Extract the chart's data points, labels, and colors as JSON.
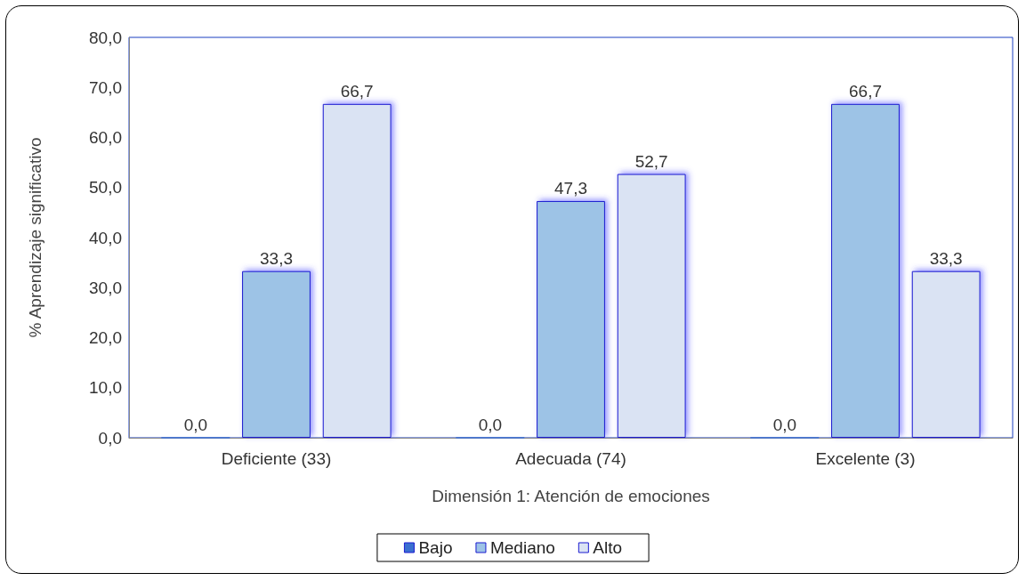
{
  "chart_data": {
    "type": "bar",
    "xlabel": "Dimensión 1: Atención de emociones",
    "ylabel": "% Aprendizaje significativo",
    "categories": [
      "Deficiente (33)",
      "Adecuada (74)",
      "Excelente (3)"
    ],
    "series": [
      {
        "name": "Bajo",
        "color": "#3a6fd0",
        "values": [
          0.0,
          0.0,
          0.0
        ],
        "value_labels": [
          "0,0",
          "0,0",
          "0,0"
        ]
      },
      {
        "name": "Mediano",
        "color": "#9dc3e6",
        "values": [
          33.3,
          47.3,
          66.7
        ],
        "value_labels": [
          "33,3",
          "47,3",
          "66,7"
        ]
      },
      {
        "name": "Alto",
        "color": "#dae3f3",
        "values": [
          66.7,
          52.7,
          33.3
        ],
        "value_labels": [
          "66,7",
          "52,7",
          "33,3"
        ]
      }
    ],
    "ylim": [
      0,
      80
    ],
    "yticks": [
      {
        "value": 0,
        "label": "0,0"
      },
      {
        "value": 10,
        "label": "10,0"
      },
      {
        "value": 20,
        "label": "20,0"
      },
      {
        "value": 30,
        "label": "30,0"
      },
      {
        "value": 40,
        "label": "40,0"
      },
      {
        "value": 50,
        "label": "50,0"
      },
      {
        "value": 60,
        "label": "60,0"
      },
      {
        "value": 70,
        "label": "70,0"
      },
      {
        "value": 80,
        "label": "80,0"
      }
    ],
    "grid": false,
    "legend": "bottom"
  }
}
